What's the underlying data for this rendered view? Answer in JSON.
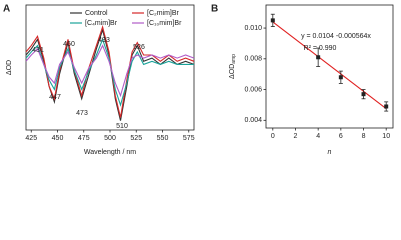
{
  "chart_data": [
    {
      "type": "line",
      "panel": "A",
      "y_label": "ΔOD",
      "x_label": "Wavelength / nm",
      "xlim": [
        420,
        580
      ],
      "xticks": [
        425,
        450,
        475,
        500,
        525,
        550,
        575
      ],
      "ylim": [
        -1,
        1
      ],
      "x": [
        420,
        425,
        431,
        437,
        442,
        447,
        452,
        460,
        466,
        473,
        480,
        487,
        493,
        499,
        505,
        510,
        516,
        521,
        526,
        532,
        540,
        548,
        556,
        564,
        572,
        580
      ],
      "series": [
        {
          "name": "Control",
          "color": "#333333",
          "values": [
            0.2,
            0.3,
            0.45,
            0.1,
            -0.3,
            -0.55,
            -0.1,
            0.4,
            -0.1,
            -0.5,
            -0.1,
            0.3,
            0.6,
            0.2,
            -0.5,
            -0.85,
            -0.3,
            0.2,
            0.35,
            0.1,
            0.15,
            0.05,
            0.15,
            0.05,
            0.1,
            0.05
          ]
        },
        {
          "name": "[C₂mim]Br",
          "color": "#d62728",
          "values": [
            0.25,
            0.35,
            0.5,
            0.15,
            -0.3,
            -0.5,
            -0.05,
            0.45,
            -0.05,
            -0.45,
            0,
            0.35,
            0.65,
            0.25,
            -0.45,
            -0.8,
            -0.2,
            0.25,
            0.4,
            0.2,
            0.2,
            0.1,
            0.2,
            0.1,
            0.15,
            0.1
          ]
        },
        {
          "name": "[C₄mim]Br",
          "color": "#1aa39a",
          "values": [
            0.15,
            0.25,
            0.35,
            0.05,
            -0.2,
            -0.35,
            0,
            0.3,
            -0.05,
            -0.35,
            -0.05,
            0.2,
            0.45,
            0.15,
            -0.35,
            -0.6,
            -0.25,
            0.1,
            0.25,
            0.05,
            0.1,
            0.05,
            0.1,
            0.05,
            0.05,
            0.05
          ]
        },
        {
          "name": "[C₁₀mim]Br",
          "color": "#b05cc8",
          "values": [
            0.1,
            0.2,
            0.3,
            0.05,
            -0.15,
            -0.25,
            0.05,
            0.25,
            0,
            -0.25,
            0,
            0.15,
            0.35,
            0.1,
            -0.25,
            -0.45,
            -0.1,
            0.15,
            0.2,
            0.15,
            0.2,
            0.15,
            0.2,
            0.15,
            0.2,
            0.15
          ]
        }
      ],
      "annotations": [
        "431",
        "460",
        "493",
        "526",
        "447",
        "473",
        "510"
      ]
    },
    {
      "type": "scatter",
      "panel": "B",
      "y_label": "ΔOD",
      "y_label_subscript": "amp",
      "x_label": "n",
      "xlim": [
        -0.6,
        10.6
      ],
      "xticks": [
        0,
        2,
        4,
        6,
        8,
        10
      ],
      "ylim": [
        0.0035,
        0.0115
      ],
      "yticks": [
        0.004,
        0.006,
        0.008,
        {
          "value": 0.01,
          "label": "0.010"
        }
      ],
      "x": [
        0,
        4,
        6,
        8,
        10
      ],
      "values": [
        0.0105,
        0.0081,
        0.0068,
        0.0057,
        0.0049
      ],
      "errors": [
        0.0004,
        0.0006,
        0.0004,
        0.0003,
        0.0003
      ],
      "color": "#222222",
      "fit": {
        "color": "#e02020",
        "x": [
          0,
          10
        ],
        "values": [
          0.0104,
          0.00476
        ]
      },
      "annotations": [
        "y = 0.0104 -0.000564x",
        "R² = 0.990"
      ]
    }
  ]
}
